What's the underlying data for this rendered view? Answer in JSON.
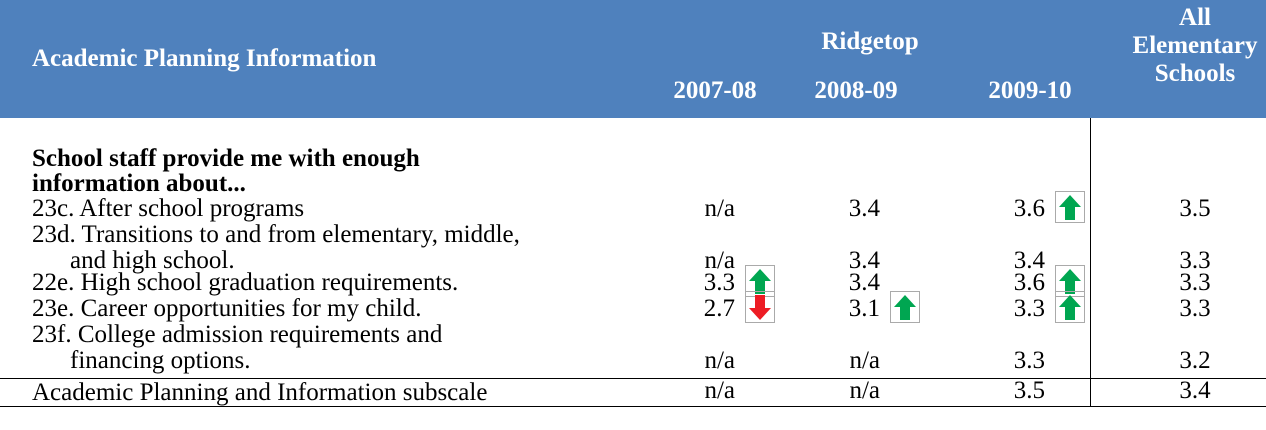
{
  "header": {
    "title": "Academic Planning Information",
    "group": "Ridgetop",
    "columns": [
      "2007-08",
      "2008-09",
      "2009-10"
    ],
    "all": "All Elementary Schools"
  },
  "section": {
    "heading": [
      "School staff provide me with enough",
      "information about..."
    ]
  },
  "rows": [
    {
      "label": [
        "23c. After school programs"
      ],
      "values": [
        "n/a",
        "3.4",
        "3.6"
      ],
      "arrows": [
        null,
        null,
        "up"
      ],
      "all": "3.5"
    },
    {
      "label": [
        "23d. Transitions to and from elementary, middle,",
        "and high school."
      ],
      "values": [
        "n/a",
        "3.4",
        "3.4"
      ],
      "arrows": [
        null,
        null,
        null
      ],
      "all": "3.3"
    },
    {
      "label": [
        "22e. High school graduation requirements."
      ],
      "values": [
        "3.3",
        "3.4",
        "3.6"
      ],
      "arrows": [
        "up",
        null,
        "up"
      ],
      "all": "3.3"
    },
    {
      "label": [
        "23e. Career opportunities for my child."
      ],
      "values": [
        "2.7",
        "3.1",
        "3.3"
      ],
      "arrows": [
        "down",
        "up",
        "up"
      ],
      "all": "3.3"
    },
    {
      "label": [
        "23f. College admission requirements and",
        "financing options."
      ],
      "values": [
        "n/a",
        "n/a",
        "3.3"
      ],
      "arrows": [
        null,
        null,
        null
      ],
      "all": "3.2"
    }
  ],
  "subscale": {
    "label": "Academic Planning and Information subscale",
    "values": [
      "n/a",
      "n/a",
      "3.5"
    ],
    "all": "3.4"
  }
}
